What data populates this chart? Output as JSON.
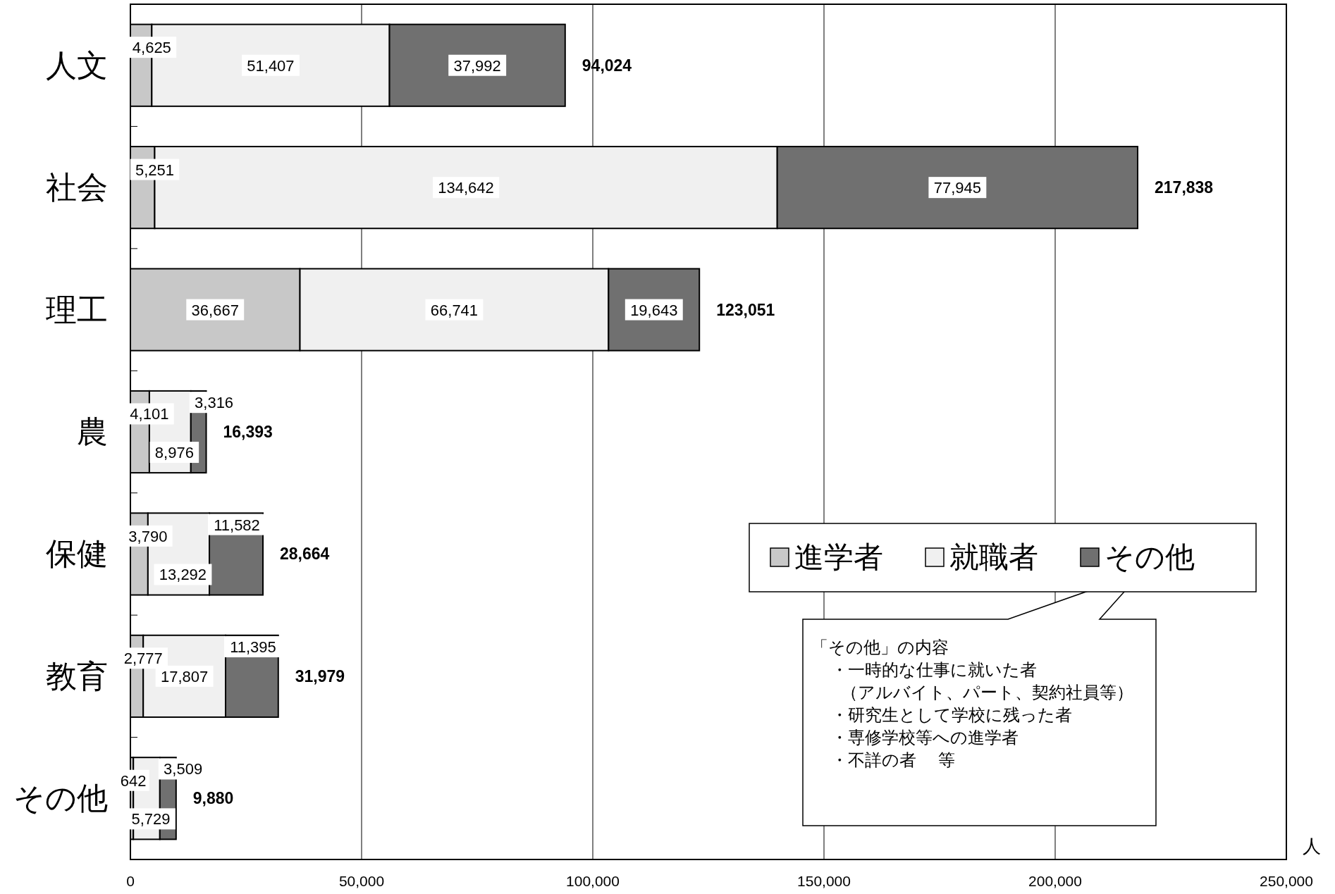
{
  "chart_data": {
    "type": "bar",
    "orientation": "horizontal",
    "stacked": true,
    "categories": [
      "人文",
      "社会",
      "理工",
      "農",
      "保健",
      "教育",
      "その他"
    ],
    "series": [
      {
        "name": "進学者",
        "color": "#c8c8c8",
        "values": [
          4625,
          5251,
          36667,
          4101,
          3790,
          2777,
          642
        ],
        "value_labels": [
          "4,625",
          "5,251",
          "36,667",
          "4,101",
          "3,790",
          "2,777",
          "642"
        ]
      },
      {
        "name": "就職者",
        "color": "#f0f0f0",
        "values": [
          51407,
          134642,
          66741,
          8976,
          13292,
          17807,
          5729
        ],
        "value_labels": [
          "51,407",
          "134,642",
          "66,741",
          "8,976",
          "13,292",
          "17,807",
          "5,729"
        ]
      },
      {
        "name": "その他",
        "color": "#707070",
        "values": [
          37992,
          77945,
          19643,
          3316,
          11582,
          11395,
          3509
        ],
        "value_labels": [
          "37,992",
          "77,945",
          "19,643",
          "3,316",
          "11,582",
          "11,395",
          "3,509"
        ]
      }
    ],
    "totals": [
      "94,024",
      "217,838",
      "123,051",
      "16,393",
      "28,664",
      "31,979",
      "9,880"
    ],
    "xlim": [
      0,
      250000
    ],
    "xticks": [
      0,
      {
        "value": 50000,
        "label": "50,000"
      },
      {
        "value": 100000,
        "label": "100,000"
      },
      {
        "value": 150000,
        "label": "150,000"
      },
      {
        "value": 200000,
        "label": "200,000"
      },
      {
        "value": 250000,
        "label": "250,000"
      }
    ],
    "xlabel": "人",
    "grid": "x",
    "legend": "bottom right",
    "annotations": [
      "「その他」の内容",
      "・一時的な仕事に就いた者",
      "（アルバイト、パート、契約社員等）",
      "・研究生として学校に残った者",
      "・専修学校等への進学者",
      "・不詳の者　 等"
    ]
  }
}
